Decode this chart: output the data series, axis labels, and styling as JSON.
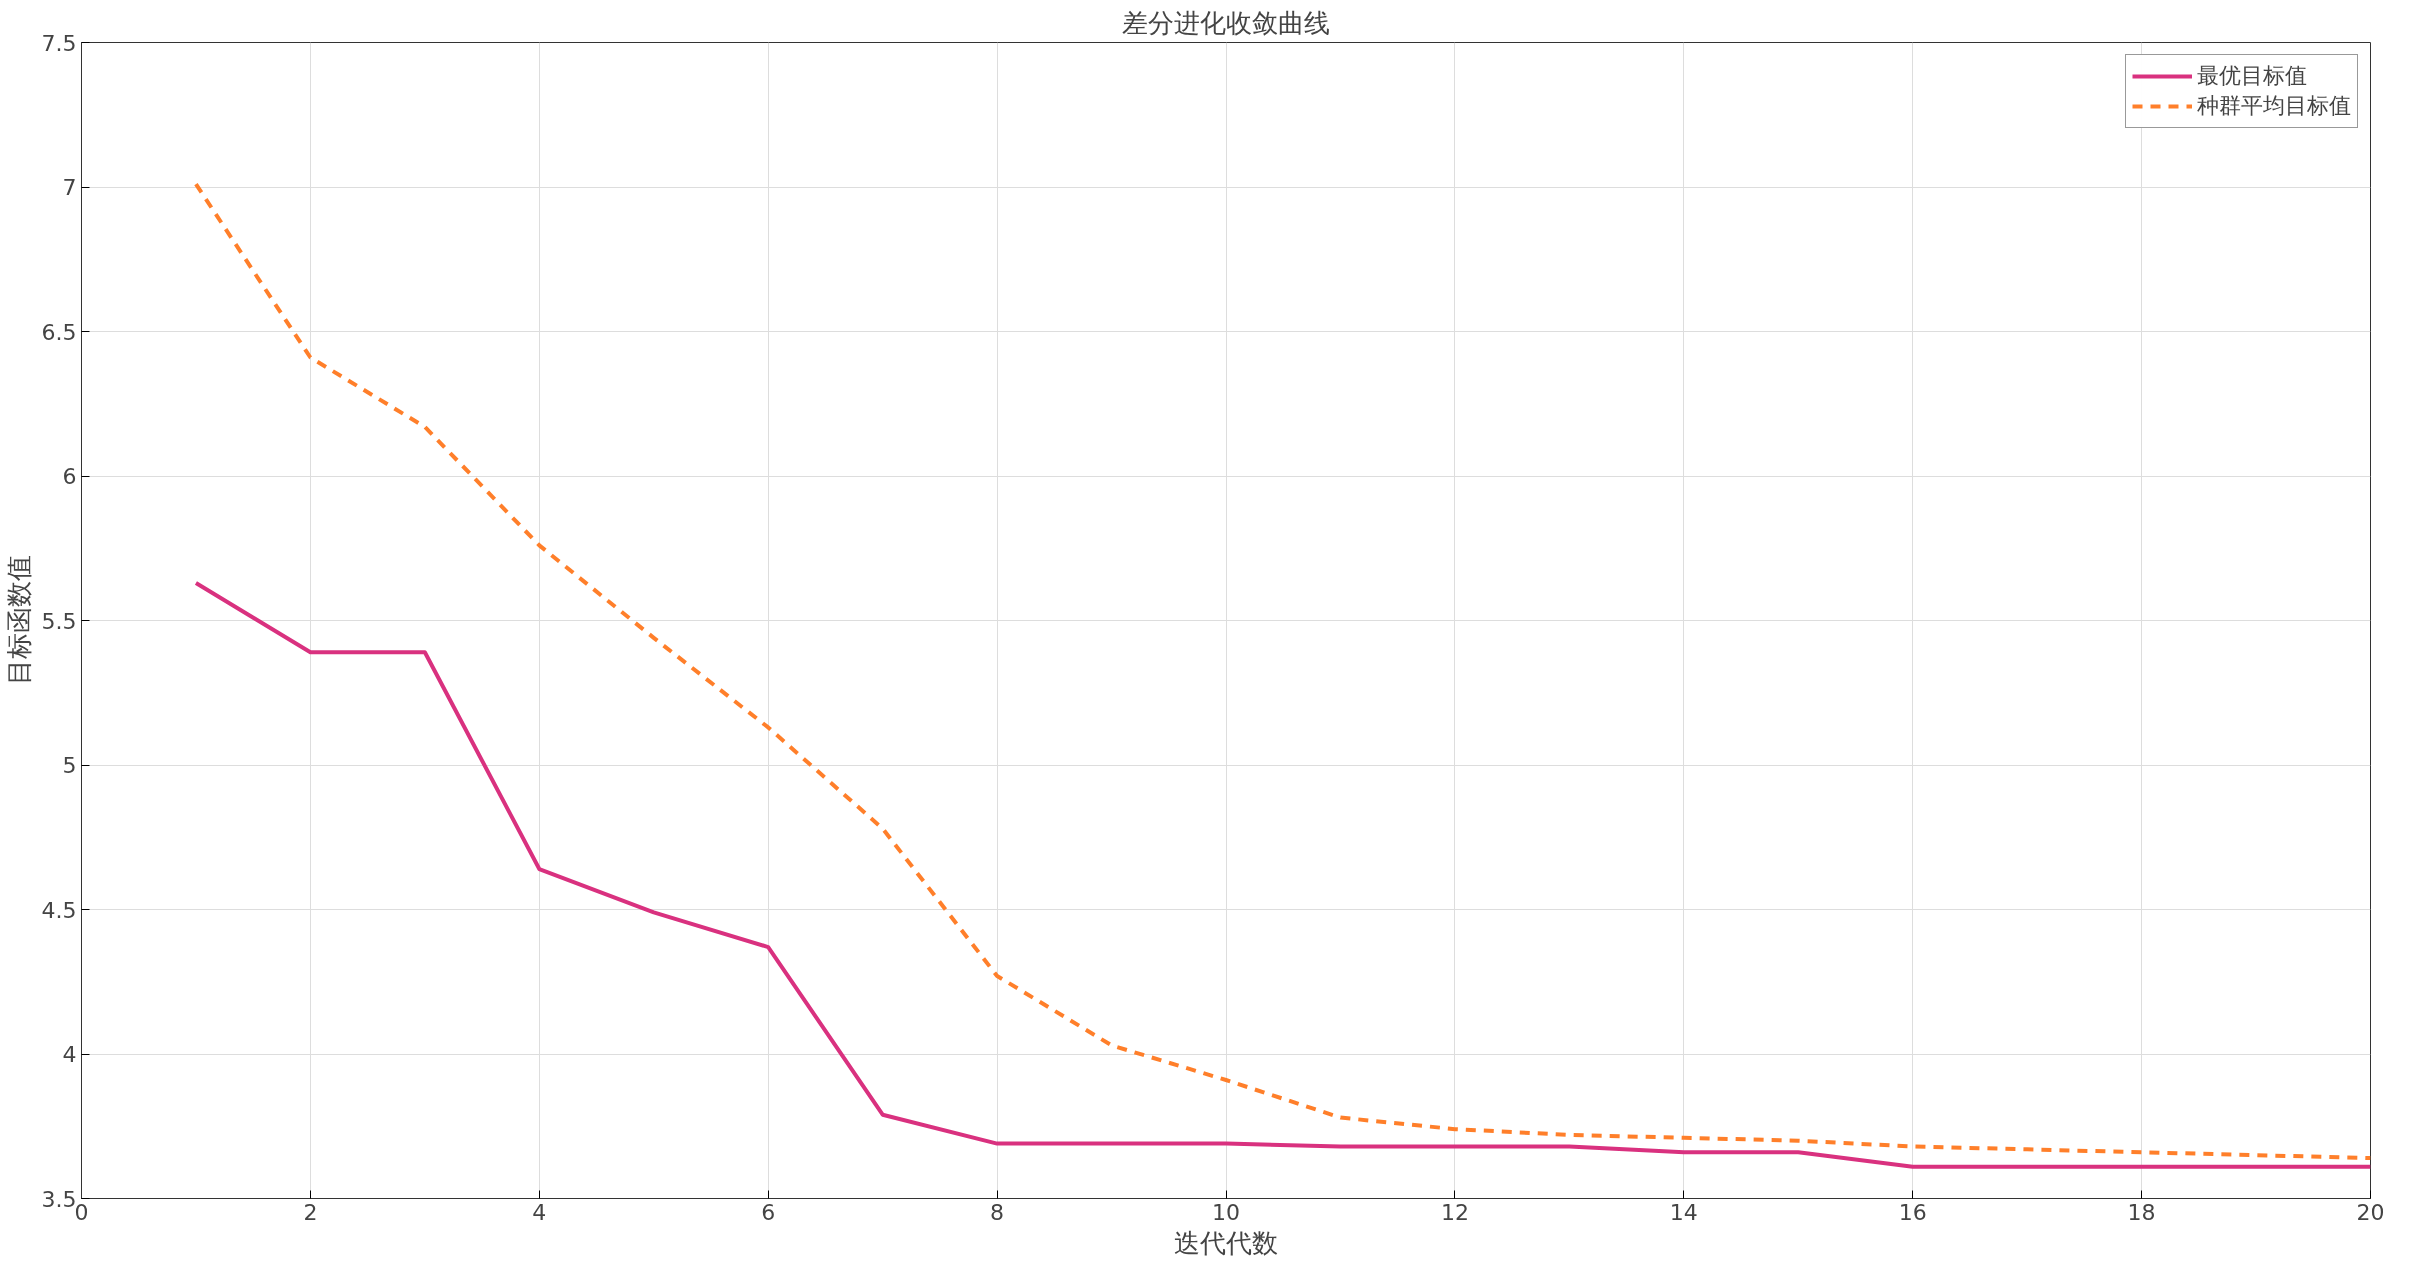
{
  "chart_data": {
    "type": "line",
    "title": "差分进化收敛曲线",
    "xlabel": "迭代代数",
    "ylabel": "目标函数值",
    "x": [
      1,
      2,
      3,
      4,
      5,
      6,
      7,
      8,
      9,
      10,
      11,
      12,
      13,
      14,
      15,
      16,
      17,
      18,
      19,
      20
    ],
    "series": [
      {
        "name": "最优目标值",
        "color": "#d9317f",
        "line_style": "solid",
        "values": [
          5.63,
          5.39,
          5.39,
          4.64,
          4.49,
          4.37,
          3.79,
          3.69,
          3.69,
          3.69,
          3.68,
          3.68,
          3.68,
          3.66,
          3.66,
          3.61,
          3.61,
          3.61,
          3.61,
          3.61
        ]
      },
      {
        "name": "种群平均目标值",
        "color": "#ff7f2a",
        "line_style": "dashed",
        "values": [
          7.01,
          6.41,
          6.17,
          5.76,
          5.44,
          5.13,
          4.78,
          4.27,
          4.03,
          3.91,
          3.78,
          3.74,
          3.72,
          3.71,
          3.7,
          3.68,
          3.67,
          3.66,
          3.65,
          3.64
        ]
      }
    ],
    "xlim": [
      0,
      20
    ],
    "xticks": [
      0,
      2,
      4,
      6,
      8,
      10,
      12,
      14,
      16,
      18,
      20
    ],
    "ylim": [
      3.5,
      7.5
    ],
    "yticks": [
      3.5,
      4,
      4.5,
      5,
      5.5,
      6,
      6.5,
      7,
      7.5
    ],
    "grid": true,
    "legend": "top right"
  }
}
